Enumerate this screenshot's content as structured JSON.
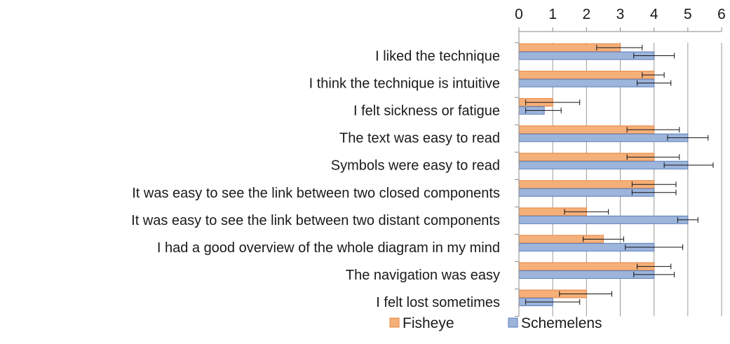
{
  "chart_data": {
    "type": "bar",
    "orientation": "horizontal",
    "x_axis_position": "top",
    "xlim": [
      0,
      6
    ],
    "xticks": [
      "0",
      "1",
      "2",
      "3",
      "4",
      "5",
      "6"
    ],
    "grid": true,
    "legend_position": "bottom",
    "categories": [
      "I liked the technique",
      "I think the technique is intuitive",
      "I felt sickness or fatigue",
      "The text was easy to read",
      "Symbols were easy to read",
      "It was easy to see the link between two closed components",
      "It was easy to see the link between two distant components",
      "I had a good overview of the whole diagram in my mind",
      "The navigation was easy",
      "I felt lost sometimes"
    ],
    "series": [
      {
        "name": "Fisheye",
        "color": "#F5B07A",
        "border": "#E8843C",
        "values": [
          3.0,
          4.0,
          1.0,
          4.0,
          4.0,
          4.0,
          2.0,
          2.5,
          4.0,
          2.0
        ],
        "error_low": [
          2.3,
          3.65,
          0.2,
          3.2,
          3.2,
          3.35,
          1.35,
          1.9,
          3.5,
          1.2
        ],
        "error_high": [
          3.65,
          4.3,
          1.8,
          4.75,
          4.75,
          4.65,
          2.65,
          3.1,
          4.5,
          2.75
        ]
      },
      {
        "name": "Schemelens",
        "color": "#9DB4DB",
        "border": "#5A7DBA",
        "values": [
          4.0,
          4.0,
          0.75,
          5.0,
          5.0,
          4.0,
          5.0,
          4.0,
          4.0,
          1.0
        ],
        "error_low": [
          3.4,
          3.5,
          0.2,
          4.4,
          4.3,
          3.35,
          4.7,
          3.15,
          3.4,
          0.2
        ],
        "error_high": [
          4.6,
          4.5,
          1.25,
          5.6,
          5.75,
          4.65,
          5.3,
          4.85,
          4.6,
          1.8
        ]
      }
    ]
  }
}
